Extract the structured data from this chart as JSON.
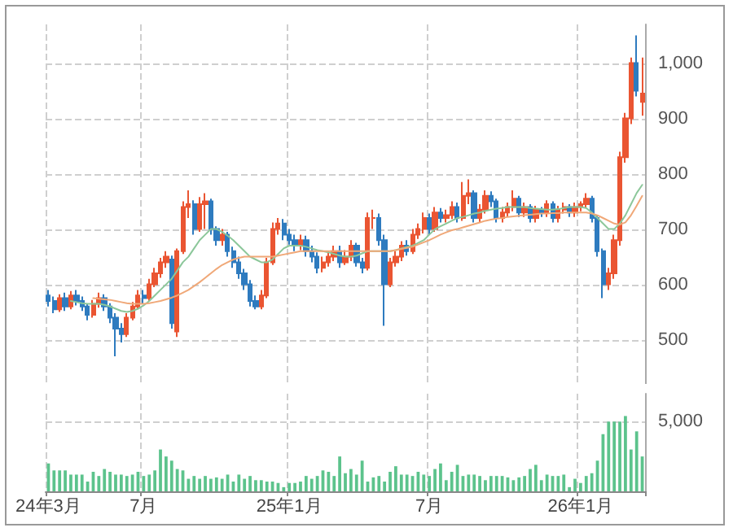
{
  "chart_data": [
    {
      "type": "candlestick",
      "ohlc": [
        [
          580,
          590,
          560,
          570
        ],
        [
          570,
          578,
          548,
          555
        ],
        [
          555,
          582,
          550,
          575
        ],
        [
          575,
          585,
          552,
          560
        ],
        [
          560,
          588,
          555,
          580
        ],
        [
          580,
          590,
          562,
          570
        ],
        [
          570,
          578,
          552,
          560
        ],
        [
          560,
          565,
          535,
          545
        ],
        [
          545,
          572,
          540,
          565
        ],
        [
          565,
          585,
          558,
          575
        ],
        [
          575,
          582,
          552,
          560
        ],
        [
          560,
          566,
          530,
          540
        ],
        [
          540,
          548,
          470,
          520
        ],
        [
          520,
          530,
          495,
          510
        ],
        [
          510,
          548,
          505,
          540
        ],
        [
          540,
          568,
          535,
          560
        ],
        [
          560,
          590,
          555,
          580
        ],
        [
          580,
          590,
          565,
          575
        ],
        [
          575,
          610,
          570,
          600
        ],
        [
          600,
          630,
          595,
          620
        ],
        [
          620,
          648,
          612,
          640
        ],
        [
          640,
          660,
          630,
          650
        ],
        [
          645,
          652,
          520,
          530
        ],
        [
          515,
          665,
          505,
          660
        ],
        [
          660,
          750,
          655,
          740
        ],
        [
          740,
          770,
          720,
          745
        ],
        [
          745,
          752,
          690,
          700
        ],
        [
          700,
          758,
          695,
          745
        ],
        [
          745,
          765,
          700,
          750
        ],
        [
          750,
          755,
          690,
          700
        ],
        [
          700,
          705,
          670,
          680
        ],
        [
          680,
          700,
          670,
          690
        ],
        [
          690,
          695,
          650,
          660
        ],
        [
          660,
          668,
          630,
          640
        ],
        [
          640,
          650,
          610,
          620
        ],
        [
          620,
          628,
          590,
          600
        ],
        [
          600,
          608,
          560,
          570
        ],
        [
          570,
          580,
          555,
          560
        ],
        [
          560,
          590,
          555,
          580
        ],
        [
          580,
          648,
          575,
          640
        ],
        [
          640,
          712,
          635,
          700
        ],
        [
          700,
          720,
          690,
          710
        ],
        [
          710,
          718,
          680,
          690
        ],
        [
          690,
          700,
          672,
          680
        ],
        [
          680,
          690,
          660,
          670
        ],
        [
          670,
          690,
          662,
          680
        ],
        [
          680,
          688,
          650,
          660
        ],
        [
          660,
          670,
          640,
          650
        ],
        [
          650,
          658,
          620,
          630
        ],
        [
          630,
          650,
          622,
          640
        ],
        [
          640,
          660,
          632,
          650
        ],
        [
          650,
          670,
          642,
          660
        ],
        [
          660,
          670,
          630,
          640
        ],
        [
          640,
          662,
          635,
          650
        ],
        [
          650,
          680,
          642,
          670
        ],
        [
          670,
          675,
          632,
          640
        ],
        [
          640,
          648,
          620,
          630
        ],
        [
          630,
          730,
          625,
          720
        ],
        [
          720,
          735,
          700,
          720
        ],
        [
          720,
          728,
          670,
          680
        ],
        [
          680,
          690,
          525,
          600
        ],
        [
          600,
          648,
          595,
          640
        ],
        [
          640,
          660,
          632,
          650
        ],
        [
          650,
          678,
          642,
          670
        ],
        [
          670,
          680,
          652,
          660
        ],
        [
          660,
          700,
          655,
          690
        ],
        [
          690,
          710,
          682,
          700
        ],
        [
          700,
          730,
          692,
          720
        ],
        [
          720,
          728,
          690,
          700
        ],
        [
          700,
          740,
          695,
          730
        ],
        [
          730,
          738,
          712,
          720
        ],
        [
          720,
          735,
          712,
          725
        ],
        [
          725,
          750,
          718,
          740
        ],
        [
          740,
          748,
          712,
          720
        ],
        [
          720,
          785,
          715,
          760
        ],
        [
          760,
          790,
          745,
          765
        ],
        [
          765,
          770,
          712,
          720
        ],
        [
          720,
          745,
          712,
          735
        ],
        [
          735,
          770,
          728,
          760
        ],
        [
          760,
          768,
          740,
          750
        ],
        [
          750,
          755,
          712,
          720
        ],
        [
          720,
          740,
          712,
          730
        ],
        [
          730,
          748,
          722,
          740
        ],
        [
          740,
          770,
          732,
          755
        ],
        [
          755,
          760,
          722,
          730
        ],
        [
          730,
          748,
          722,
          740
        ],
        [
          740,
          745,
          712,
          720
        ],
        [
          720,
          742,
          712,
          735
        ],
        [
          735,
          740,
          722,
          730
        ],
        [
          730,
          752,
          722,
          745
        ],
        [
          745,
          750,
          712,
          720
        ],
        [
          720,
          742,
          712,
          735
        ],
        [
          735,
          748,
          728,
          740
        ],
        [
          740,
          745,
          722,
          730
        ],
        [
          730,
          748,
          722,
          740
        ],
        [
          740,
          750,
          732,
          745
        ],
        [
          745,
          765,
          738,
          755
        ],
        [
          755,
          760,
          712,
          720
        ],
        [
          720,
          725,
          650,
          660
        ],
        [
          660,
          665,
          575,
          600
        ],
        [
          600,
          630,
          590,
          620
        ],
        [
          620,
          690,
          610,
          680
        ],
        [
          680,
          840,
          670,
          830
        ],
        [
          830,
          910,
          820,
          900
        ],
        [
          900,
          1010,
          890,
          1000
        ],
        [
          1000,
          1050,
          940,
          950
        ],
        [
          930,
          1010,
          905,
          945
        ]
      ],
      "colors": [
        "#2e7bbf",
        "#2e7bbf",
        "#ea5532",
        "#2e7bbf",
        "#ea5532",
        "#2e7bbf",
        "#2e7bbf",
        "#2e7bbf",
        "#ea5532",
        "#ea5532",
        "#2e7bbf",
        "#2e7bbf",
        "#2e7bbf",
        "#2e7bbf",
        "#ea5532",
        "#ea5532",
        "#ea5532",
        "#2e7bbf",
        "#ea5532",
        "#ea5532",
        "#ea5532",
        "#ea5532",
        "#2e7bbf",
        "#ea5532",
        "#ea5532",
        "#ea5532",
        "#2e7bbf",
        "#ea5532",
        "#ea5532",
        "#2e7bbf",
        "#2e7bbf",
        "#ea5532",
        "#2e7bbf",
        "#2e7bbf",
        "#2e7bbf",
        "#2e7bbf",
        "#2e7bbf",
        "#2e7bbf",
        "#ea5532",
        "#ea5532",
        "#ea5532",
        "#ea5532",
        "#2e7bbf",
        "#2e7bbf",
        "#2e7bbf",
        "#ea5532",
        "#2e7bbf",
        "#2e7bbf",
        "#2e7bbf",
        "#ea5532",
        "#ea5532",
        "#ea5532",
        "#2e7bbf",
        "#ea5532",
        "#ea5532",
        "#2e7bbf",
        "#2e7bbf",
        "#ea5532",
        "#ea5532",
        "#2e7bbf",
        "#2e7bbf",
        "#ea5532",
        "#ea5532",
        "#ea5532",
        "#2e7bbf",
        "#ea5532",
        "#ea5532",
        "#ea5532",
        "#2e7bbf",
        "#ea5532",
        "#2e7bbf",
        "#ea5532",
        "#ea5532",
        "#2e7bbf",
        "#ea5532",
        "#ea5532",
        "#2e7bbf",
        "#ea5532",
        "#ea5532",
        "#2e7bbf",
        "#2e7bbf",
        "#ea5532",
        "#ea5532",
        "#ea5532",
        "#2e7bbf",
        "#ea5532",
        "#2e7bbf",
        "#ea5532",
        "#2e7bbf",
        "#ea5532",
        "#2e7bbf",
        "#ea5532",
        "#ea5532",
        "#2e7bbf",
        "#ea5532",
        "#ea5532",
        "#ea5532",
        "#2e7bbf",
        "#2e7bbf",
        "#2e7bbf",
        "#ea5532",
        "#ea5532",
        "#ea5532",
        "#ea5532",
        "#ea5532",
        "#2e7bbf",
        "#ea5532"
      ],
      "series": [
        {
          "type": "line",
          "color": "#8cc79a",
          "values": [
            null,
            null,
            null,
            null,
            570,
            568,
            566,
            565,
            565,
            565,
            563,
            560,
            556,
            552,
            550,
            552,
            556,
            562,
            570,
            580,
            590,
            600,
            610,
            625,
            640,
            650,
            665,
            680,
            690,
            700,
            700,
            695,
            688,
            680,
            670,
            660,
            650,
            645,
            640,
            640,
            645,
            655,
            665,
            670,
            670,
            670,
            668,
            665,
            662,
            660,
            658,
            655,
            652,
            650,
            650,
            652,
            656,
            660,
            660,
            660,
            660,
            660,
            662,
            665,
            668,
            670,
            675,
            680,
            690,
            700,
            705,
            710,
            715,
            720,
            722,
            725,
            728,
            730,
            733,
            735,
            737,
            738,
            740,
            740,
            740,
            740,
            738,
            737,
            736,
            735,
            735,
            736,
            738,
            740,
            740,
            740,
            738,
            730,
            720,
            710,
            700,
            700,
            710,
            725,
            745,
            765,
            780
          ]
        },
        {
          "type": "line",
          "color": "#f0a878",
          "values": [
            null,
            null,
            null,
            null,
            null,
            null,
            null,
            null,
            575,
            574,
            573,
            572,
            570,
            568,
            566,
            565,
            565,
            565,
            566,
            568,
            570,
            573,
            576,
            580,
            585,
            590,
            597,
            604,
            612,
            620,
            628,
            635,
            640,
            645,
            648,
            650,
            650,
            650,
            650,
            650,
            650,
            652,
            654,
            656,
            658,
            660,
            660,
            660,
            660,
            660,
            660,
            660,
            660,
            660,
            660,
            660,
            660,
            660,
            660,
            660,
            660,
            660,
            662,
            664,
            666,
            668,
            672,
            676,
            680,
            685,
            690,
            694,
            698,
            700,
            703,
            706,
            709,
            712,
            715,
            717,
            719,
            720,
            722,
            723,
            724,
            725,
            726,
            727,
            728,
            728,
            729,
            729,
            730,
            730,
            730,
            730,
            730,
            728,
            725,
            720,
            715,
            710,
            708,
            712,
            725,
            742,
            760
          ]
        }
      ],
      "ylim": [
        420,
        1070
      ],
      "yticks": [
        500,
        600,
        700,
        800,
        900,
        {
          "value": 1000,
          "label": "1,000"
        }
      ],
      "grid": true,
      "tick_labels": "y"
    },
    {
      "type": "bar",
      "categories": [
        "24年3月",
        null,
        null,
        null,
        null,
        null,
        null,
        null,
        null,
        null,
        null,
        null,
        null,
        null,
        null,
        null,
        null,
        "7月",
        null,
        null,
        null,
        null,
        null,
        null,
        null,
        null,
        null,
        null,
        null,
        null,
        null,
        null,
        null,
        null,
        null,
        null,
        null,
        null,
        null,
        null,
        null,
        null,
        null,
        "25年1月",
        null,
        null,
        null,
        null,
        null,
        null,
        null,
        null,
        null,
        null,
        null,
        null,
        null,
        null,
        null,
        null,
        null,
        null,
        null,
        null,
        null,
        null,
        null,
        null,
        "7月",
        null,
        null,
        null,
        null,
        null,
        null,
        null,
        null,
        null,
        null,
        null,
        null,
        null,
        null,
        null,
        null,
        null,
        null,
        null,
        null,
        null,
        null,
        null,
        null,
        null,
        null,
        "26年1月",
        null,
        null,
        null,
        null,
        null,
        null,
        null,
        null,
        null,
        null,
        null
      ],
      "values": [
        2000,
        1500,
        1500,
        1500,
        1200,
        1200,
        1200,
        700,
        1400,
        1100,
        1600,
        1400,
        1200,
        1200,
        1100,
        1200,
        1400,
        1100,
        1200,
        1500,
        3000,
        2500,
        2200,
        1600,
        1500,
        900,
        1100,
        900,
        1100,
        900,
        1000,
        900,
        1200,
        700,
        1200,
        900,
        1100,
        800,
        800,
        700,
        700,
        600,
        300,
        600,
        600,
        700,
        1100,
        900,
        1100,
        1500,
        1400,
        1100,
        2500,
        1300,
        1600,
        1200,
        2200,
        700,
        1000,
        1100,
        700,
        1400,
        1800,
        1200,
        1200,
        1100,
        1400,
        1200,
        1100,
        1600,
        2000,
        800,
        1400,
        1900,
        1100,
        1200,
        1200,
        1100,
        800,
        1100,
        1100,
        1100,
        1000,
        800,
        1000,
        1100,
        1600,
        1900,
        800,
        1200,
        1100,
        1100,
        1200,
        300,
        900,
        600,
        1100,
        1300,
        2200,
        4100,
        5000,
        5000,
        5000,
        5400,
        3000,
        4300,
        2500
      ],
      "color": "#5cc38c",
      "ylim": [
        0,
        7000
      ],
      "yticks": [
        {
          "value": 0,
          "label": null
        },
        {
          "value": 5000,
          "label": "5,000"
        }
      ],
      "grid": true
    }
  ]
}
